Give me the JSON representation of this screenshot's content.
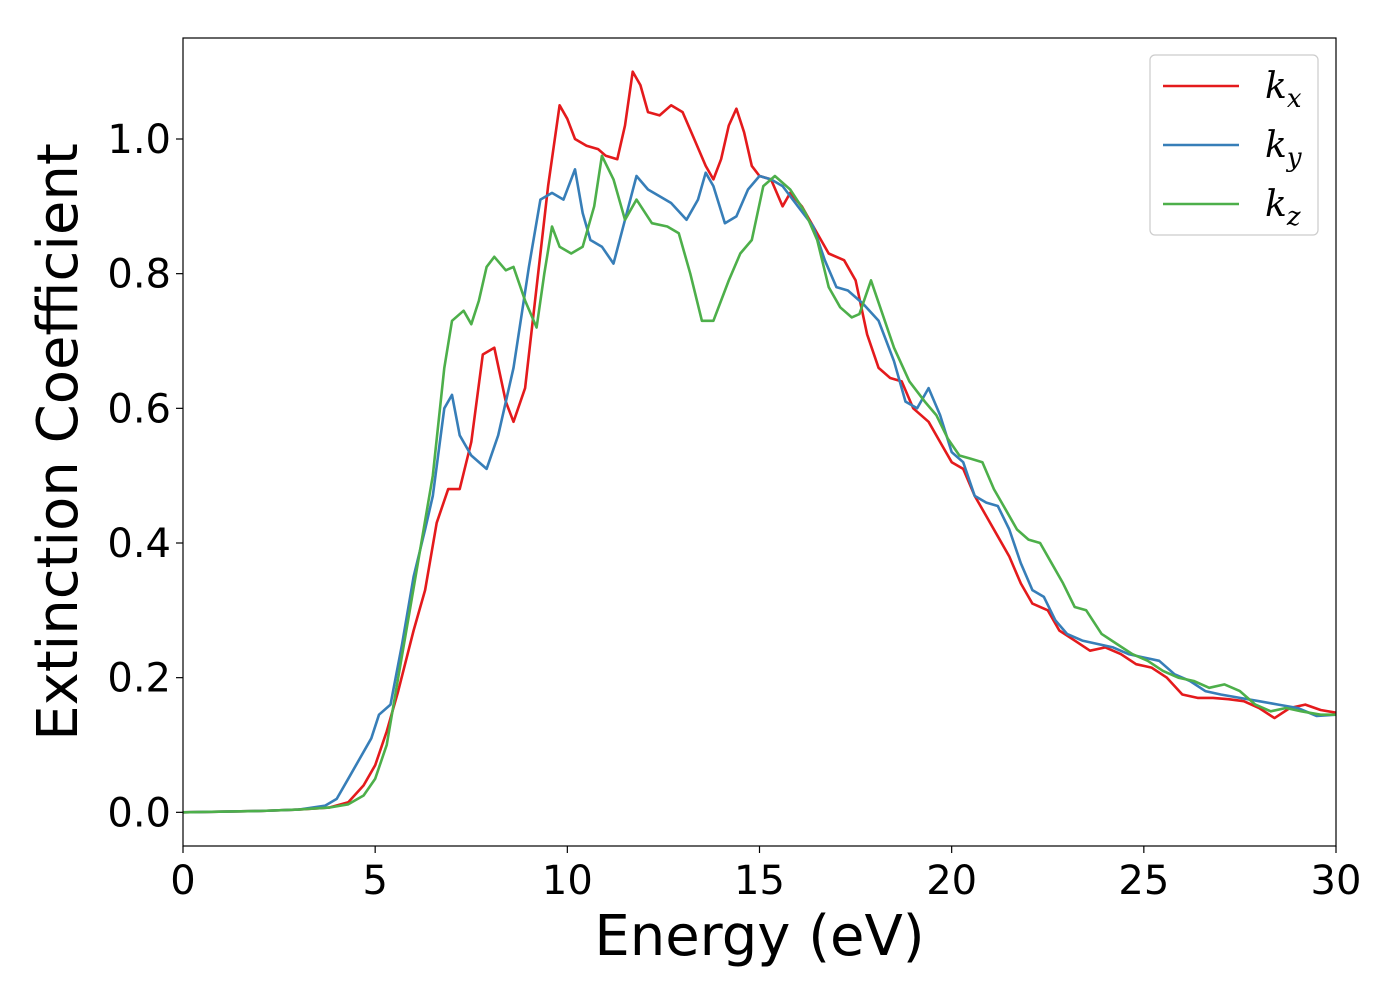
{
  "chart_data": {
    "type": "line",
    "title": "",
    "xlabel": "Energy (eV)",
    "ylabel": "Extinction Coefficient",
    "xlim": [
      0,
      30
    ],
    "ylim": [
      -0.05,
      1.15
    ],
    "xticks": [
      "0",
      "5",
      "10",
      "15",
      "20",
      "25",
      "30"
    ],
    "yticks": [
      "0.0",
      "0.2",
      "0.4",
      "0.6",
      "0.8",
      "1.0"
    ],
    "grid": false,
    "legend_position": "top-right",
    "series": [
      {
        "name": "k",
        "subscript": "x",
        "color": "#e41a1c",
        "points": [
          [
            0,
            0.0
          ],
          [
            2,
            0.002
          ],
          [
            3,
            0.004
          ],
          [
            3.8,
            0.007
          ],
          [
            4.3,
            0.015
          ],
          [
            4.7,
            0.04
          ],
          [
            5.0,
            0.07
          ],
          [
            5.3,
            0.12
          ],
          [
            5.6,
            0.18
          ],
          [
            6.0,
            0.27
          ],
          [
            6.3,
            0.33
          ],
          [
            6.6,
            0.43
          ],
          [
            6.9,
            0.48
          ],
          [
            7.2,
            0.48
          ],
          [
            7.5,
            0.55
          ],
          [
            7.8,
            0.68
          ],
          [
            8.1,
            0.69
          ],
          [
            8.4,
            0.61
          ],
          [
            8.6,
            0.58
          ],
          [
            8.9,
            0.63
          ],
          [
            9.2,
            0.78
          ],
          [
            9.5,
            0.93
          ],
          [
            9.8,
            1.05
          ],
          [
            10.0,
            1.03
          ],
          [
            10.2,
            1.0
          ],
          [
            10.5,
            0.99
          ],
          [
            10.8,
            0.985
          ],
          [
            11.0,
            0.975
          ],
          [
            11.3,
            0.97
          ],
          [
            11.5,
            1.02
          ],
          [
            11.7,
            1.1
          ],
          [
            11.9,
            1.08
          ],
          [
            12.1,
            1.04
          ],
          [
            12.4,
            1.035
          ],
          [
            12.7,
            1.05
          ],
          [
            13.0,
            1.04
          ],
          [
            13.3,
            1.0
          ],
          [
            13.6,
            0.96
          ],
          [
            13.8,
            0.94
          ],
          [
            14.0,
            0.97
          ],
          [
            14.2,
            1.02
          ],
          [
            14.4,
            1.045
          ],
          [
            14.6,
            1.01
          ],
          [
            14.8,
            0.96
          ],
          [
            15.0,
            0.945
          ],
          [
            15.3,
            0.94
          ],
          [
            15.6,
            0.9
          ],
          [
            15.8,
            0.92
          ],
          [
            16.1,
            0.9
          ],
          [
            16.4,
            0.87
          ],
          [
            16.8,
            0.83
          ],
          [
            17.2,
            0.82
          ],
          [
            17.5,
            0.79
          ],
          [
            17.8,
            0.71
          ],
          [
            18.1,
            0.66
          ],
          [
            18.4,
            0.645
          ],
          [
            18.7,
            0.64
          ],
          [
            19.0,
            0.6
          ],
          [
            19.4,
            0.58
          ],
          [
            19.7,
            0.55
          ],
          [
            20.0,
            0.52
          ],
          [
            20.3,
            0.51
          ],
          [
            20.6,
            0.47
          ],
          [
            20.9,
            0.44
          ],
          [
            21.2,
            0.41
          ],
          [
            21.5,
            0.38
          ],
          [
            21.8,
            0.34
          ],
          [
            22.1,
            0.31
          ],
          [
            22.5,
            0.3
          ],
          [
            22.8,
            0.27
          ],
          [
            23.2,
            0.255
          ],
          [
            23.6,
            0.24
          ],
          [
            24.0,
            0.245
          ],
          [
            24.4,
            0.235
          ],
          [
            24.8,
            0.22
          ],
          [
            25.2,
            0.215
          ],
          [
            25.6,
            0.2
          ],
          [
            26.0,
            0.175
          ],
          [
            26.4,
            0.17
          ],
          [
            26.8,
            0.17
          ],
          [
            27.2,
            0.168
          ],
          [
            27.6,
            0.165
          ],
          [
            28.0,
            0.155
          ],
          [
            28.4,
            0.14
          ],
          [
            28.8,
            0.155
          ],
          [
            29.2,
            0.16
          ],
          [
            29.6,
            0.152
          ],
          [
            30.0,
            0.148
          ]
        ]
      },
      {
        "name": "k",
        "subscript": "y",
        "color": "#377eb8",
        "points": [
          [
            0,
            0.0
          ],
          [
            2,
            0.002
          ],
          [
            3,
            0.004
          ],
          [
            3.7,
            0.01
          ],
          [
            4.0,
            0.02
          ],
          [
            4.3,
            0.05
          ],
          [
            4.6,
            0.08
          ],
          [
            4.9,
            0.11
          ],
          [
            5.1,
            0.145
          ],
          [
            5.4,
            0.16
          ],
          [
            5.7,
            0.25
          ],
          [
            6.0,
            0.35
          ],
          [
            6.3,
            0.42
          ],
          [
            6.5,
            0.47
          ],
          [
            6.8,
            0.6
          ],
          [
            7.0,
            0.62
          ],
          [
            7.2,
            0.56
          ],
          [
            7.5,
            0.53
          ],
          [
            7.9,
            0.51
          ],
          [
            8.2,
            0.56
          ],
          [
            8.6,
            0.66
          ],
          [
            9.0,
            0.81
          ],
          [
            9.3,
            0.91
          ],
          [
            9.6,
            0.92
          ],
          [
            9.9,
            0.91
          ],
          [
            10.2,
            0.955
          ],
          [
            10.4,
            0.89
          ],
          [
            10.6,
            0.85
          ],
          [
            10.9,
            0.84
          ],
          [
            11.2,
            0.815
          ],
          [
            11.5,
            0.88
          ],
          [
            11.8,
            0.945
          ],
          [
            12.1,
            0.925
          ],
          [
            12.4,
            0.915
          ],
          [
            12.7,
            0.905
          ],
          [
            13.1,
            0.88
          ],
          [
            13.4,
            0.91
          ],
          [
            13.6,
            0.95
          ],
          [
            13.8,
            0.93
          ],
          [
            14.1,
            0.875
          ],
          [
            14.4,
            0.885
          ],
          [
            14.7,
            0.925
          ],
          [
            15.0,
            0.945
          ],
          [
            15.3,
            0.94
          ],
          [
            15.6,
            0.93
          ],
          [
            16.0,
            0.9
          ],
          [
            16.4,
            0.87
          ],
          [
            16.7,
            0.82
          ],
          [
            17.0,
            0.78
          ],
          [
            17.3,
            0.775
          ],
          [
            17.7,
            0.755
          ],
          [
            18.1,
            0.73
          ],
          [
            18.5,
            0.67
          ],
          [
            18.8,
            0.61
          ],
          [
            19.1,
            0.6
          ],
          [
            19.4,
            0.63
          ],
          [
            19.7,
            0.59
          ],
          [
            20.0,
            0.535
          ],
          [
            20.3,
            0.52
          ],
          [
            20.6,
            0.47
          ],
          [
            20.9,
            0.46
          ],
          [
            21.2,
            0.455
          ],
          [
            21.5,
            0.42
          ],
          [
            21.8,
            0.37
          ],
          [
            22.1,
            0.33
          ],
          [
            22.4,
            0.32
          ],
          [
            22.7,
            0.285
          ],
          [
            23.0,
            0.265
          ],
          [
            23.4,
            0.255
          ],
          [
            23.8,
            0.25
          ],
          [
            24.2,
            0.245
          ],
          [
            24.6,
            0.235
          ],
          [
            25.0,
            0.23
          ],
          [
            25.4,
            0.225
          ],
          [
            25.8,
            0.205
          ],
          [
            26.2,
            0.195
          ],
          [
            26.6,
            0.18
          ],
          [
            27.0,
            0.175
          ],
          [
            27.5,
            0.17
          ],
          [
            28.0,
            0.165
          ],
          [
            28.5,
            0.16
          ],
          [
            29.0,
            0.155
          ],
          [
            29.5,
            0.143
          ],
          [
            30.0,
            0.145
          ]
        ]
      },
      {
        "name": "k",
        "subscript": "z",
        "color": "#4daf4a",
        "points": [
          [
            0,
            0.0
          ],
          [
            2,
            0.002
          ],
          [
            3,
            0.004
          ],
          [
            3.8,
            0.007
          ],
          [
            4.3,
            0.012
          ],
          [
            4.7,
            0.025
          ],
          [
            5.0,
            0.05
          ],
          [
            5.3,
            0.1
          ],
          [
            5.6,
            0.2
          ],
          [
            5.9,
            0.3
          ],
          [
            6.2,
            0.4
          ],
          [
            6.5,
            0.5
          ],
          [
            6.8,
            0.66
          ],
          [
            7.0,
            0.73
          ],
          [
            7.3,
            0.745
          ],
          [
            7.5,
            0.725
          ],
          [
            7.7,
            0.76
          ],
          [
            7.9,
            0.81
          ],
          [
            8.1,
            0.825
          ],
          [
            8.4,
            0.805
          ],
          [
            8.6,
            0.81
          ],
          [
            8.9,
            0.76
          ],
          [
            9.2,
            0.72
          ],
          [
            9.4,
            0.8
          ],
          [
            9.6,
            0.87
          ],
          [
            9.8,
            0.84
          ],
          [
            10.1,
            0.83
          ],
          [
            10.4,
            0.84
          ],
          [
            10.7,
            0.9
          ],
          [
            10.9,
            0.975
          ],
          [
            11.2,
            0.94
          ],
          [
            11.5,
            0.88
          ],
          [
            11.8,
            0.91
          ],
          [
            12.2,
            0.875
          ],
          [
            12.6,
            0.87
          ],
          [
            12.9,
            0.86
          ],
          [
            13.2,
            0.8
          ],
          [
            13.5,
            0.73
          ],
          [
            13.8,
            0.73
          ],
          [
            14.2,
            0.79
          ],
          [
            14.5,
            0.83
          ],
          [
            14.8,
            0.85
          ],
          [
            15.1,
            0.93
          ],
          [
            15.4,
            0.945
          ],
          [
            15.8,
            0.925
          ],
          [
            16.2,
            0.89
          ],
          [
            16.5,
            0.85
          ],
          [
            16.8,
            0.78
          ],
          [
            17.1,
            0.75
          ],
          [
            17.4,
            0.735
          ],
          [
            17.6,
            0.74
          ],
          [
            17.9,
            0.79
          ],
          [
            18.2,
            0.74
          ],
          [
            18.5,
            0.69
          ],
          [
            18.9,
            0.64
          ],
          [
            19.3,
            0.61
          ],
          [
            19.6,
            0.59
          ],
          [
            19.9,
            0.555
          ],
          [
            20.2,
            0.53
          ],
          [
            20.5,
            0.525
          ],
          [
            20.8,
            0.52
          ],
          [
            21.1,
            0.48
          ],
          [
            21.4,
            0.45
          ],
          [
            21.7,
            0.42
          ],
          [
            22.0,
            0.405
          ],
          [
            22.3,
            0.4
          ],
          [
            22.6,
            0.37
          ],
          [
            22.9,
            0.34
          ],
          [
            23.2,
            0.305
          ],
          [
            23.5,
            0.3
          ],
          [
            23.9,
            0.265
          ],
          [
            24.3,
            0.25
          ],
          [
            24.7,
            0.235
          ],
          [
            25.1,
            0.225
          ],
          [
            25.5,
            0.21
          ],
          [
            25.9,
            0.2
          ],
          [
            26.3,
            0.195
          ],
          [
            26.7,
            0.185
          ],
          [
            27.1,
            0.19
          ],
          [
            27.5,
            0.18
          ],
          [
            27.9,
            0.16
          ],
          [
            28.3,
            0.15
          ],
          [
            28.7,
            0.155
          ],
          [
            29.1,
            0.15
          ],
          [
            29.6,
            0.145
          ],
          [
            30.0,
            0.145
          ]
        ]
      }
    ]
  }
}
